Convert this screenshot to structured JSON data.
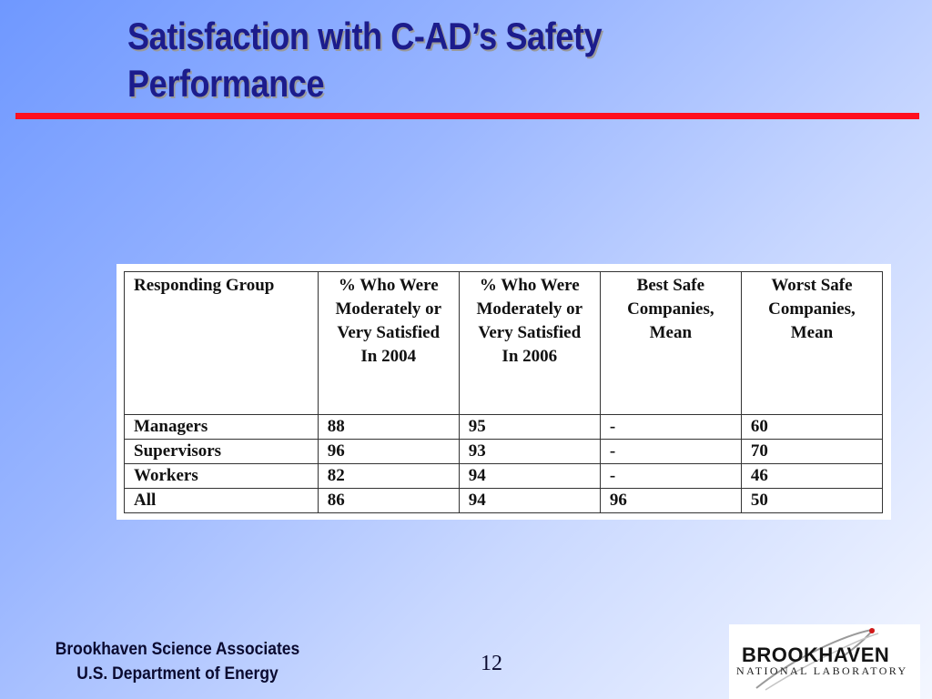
{
  "slide": {
    "title_line1": "Satisfaction with C-AD’s Safety",
    "title_line2": "Performance"
  },
  "table": {
    "headers": [
      "Responding Group",
      "% Who Were Moderately or Very Satisfied In 2004",
      "% Who Were Moderately or Very Satisfied In 2006",
      "Best Safe Companies, Mean",
      "Worst Safe Companies, Mean"
    ],
    "rows": [
      [
        "Managers",
        "88",
        "95",
        "-",
        "60"
      ],
      [
        "Supervisors",
        "96",
        "93",
        "-",
        "70"
      ],
      [
        "Workers",
        "82",
        "94",
        "-",
        "46"
      ],
      [
        "All",
        "86",
        "94",
        "96",
        "50"
      ]
    ]
  },
  "footer": {
    "org_line1": "Brookhaven Science Associates",
    "org_line2": "U.S. Department of Energy",
    "page_number": "12"
  },
  "logo": {
    "name": "BROOKHAVEN",
    "subtitle": "NATIONAL LABORATORY"
  },
  "colors": {
    "title": "#1c1c8c",
    "rule": "#ff0f1f",
    "background_start": "#6f98ff",
    "background_end": "#f4f7ff"
  }
}
